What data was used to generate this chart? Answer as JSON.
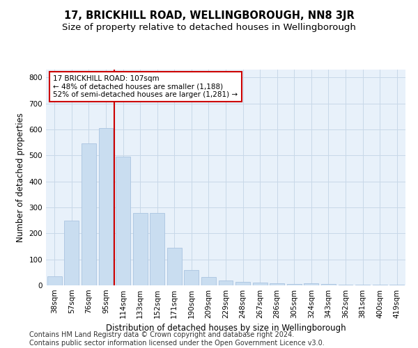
{
  "title": "17, BRICKHILL ROAD, WELLINGBOROUGH, NN8 3JR",
  "subtitle": "Size of property relative to detached houses in Wellingborough",
  "xlabel": "Distribution of detached houses by size in Wellingborough",
  "ylabel": "Number of detached properties",
  "categories": [
    "38sqm",
    "57sqm",
    "76sqm",
    "95sqm",
    "114sqm",
    "133sqm",
    "152sqm",
    "171sqm",
    "190sqm",
    "209sqm",
    "229sqm",
    "248sqm",
    "267sqm",
    "286sqm",
    "305sqm",
    "324sqm",
    "343sqm",
    "362sqm",
    "381sqm",
    "400sqm",
    "419sqm"
  ],
  "values": [
    35,
    248,
    545,
    605,
    495,
    278,
    278,
    145,
    60,
    32,
    18,
    13,
    10,
    8,
    5,
    8,
    5,
    4,
    2,
    2,
    4
  ],
  "bar_color": "#c9ddf0",
  "bar_edge_color": "#aac4e0",
  "vline_x_index": 3.5,
  "vline_color": "#cc0000",
  "annotation_line1": "17 BRICKHILL ROAD: 107sqm",
  "annotation_line2": "← 48% of detached houses are smaller (1,188)",
  "annotation_line3": "52% of semi-detached houses are larger (1,281) →",
  "annotation_box_color": "#ffffff",
  "annotation_box_edge": "#cc0000",
  "ylim": [
    0,
    830
  ],
  "yticks": [
    0,
    100,
    200,
    300,
    400,
    500,
    600,
    700,
    800
  ],
  "grid_color": "#c8d8e8",
  "background_color": "#e8f1fa",
  "footer": "Contains HM Land Registry data © Crown copyright and database right 2024.\nContains public sector information licensed under the Open Government Licence v3.0.",
  "title_fontsize": 10.5,
  "subtitle_fontsize": 9.5,
  "xlabel_fontsize": 8.5,
  "ylabel_fontsize": 8.5,
  "tick_fontsize": 7.5,
  "annotation_fontsize": 7.5,
  "footer_fontsize": 7
}
